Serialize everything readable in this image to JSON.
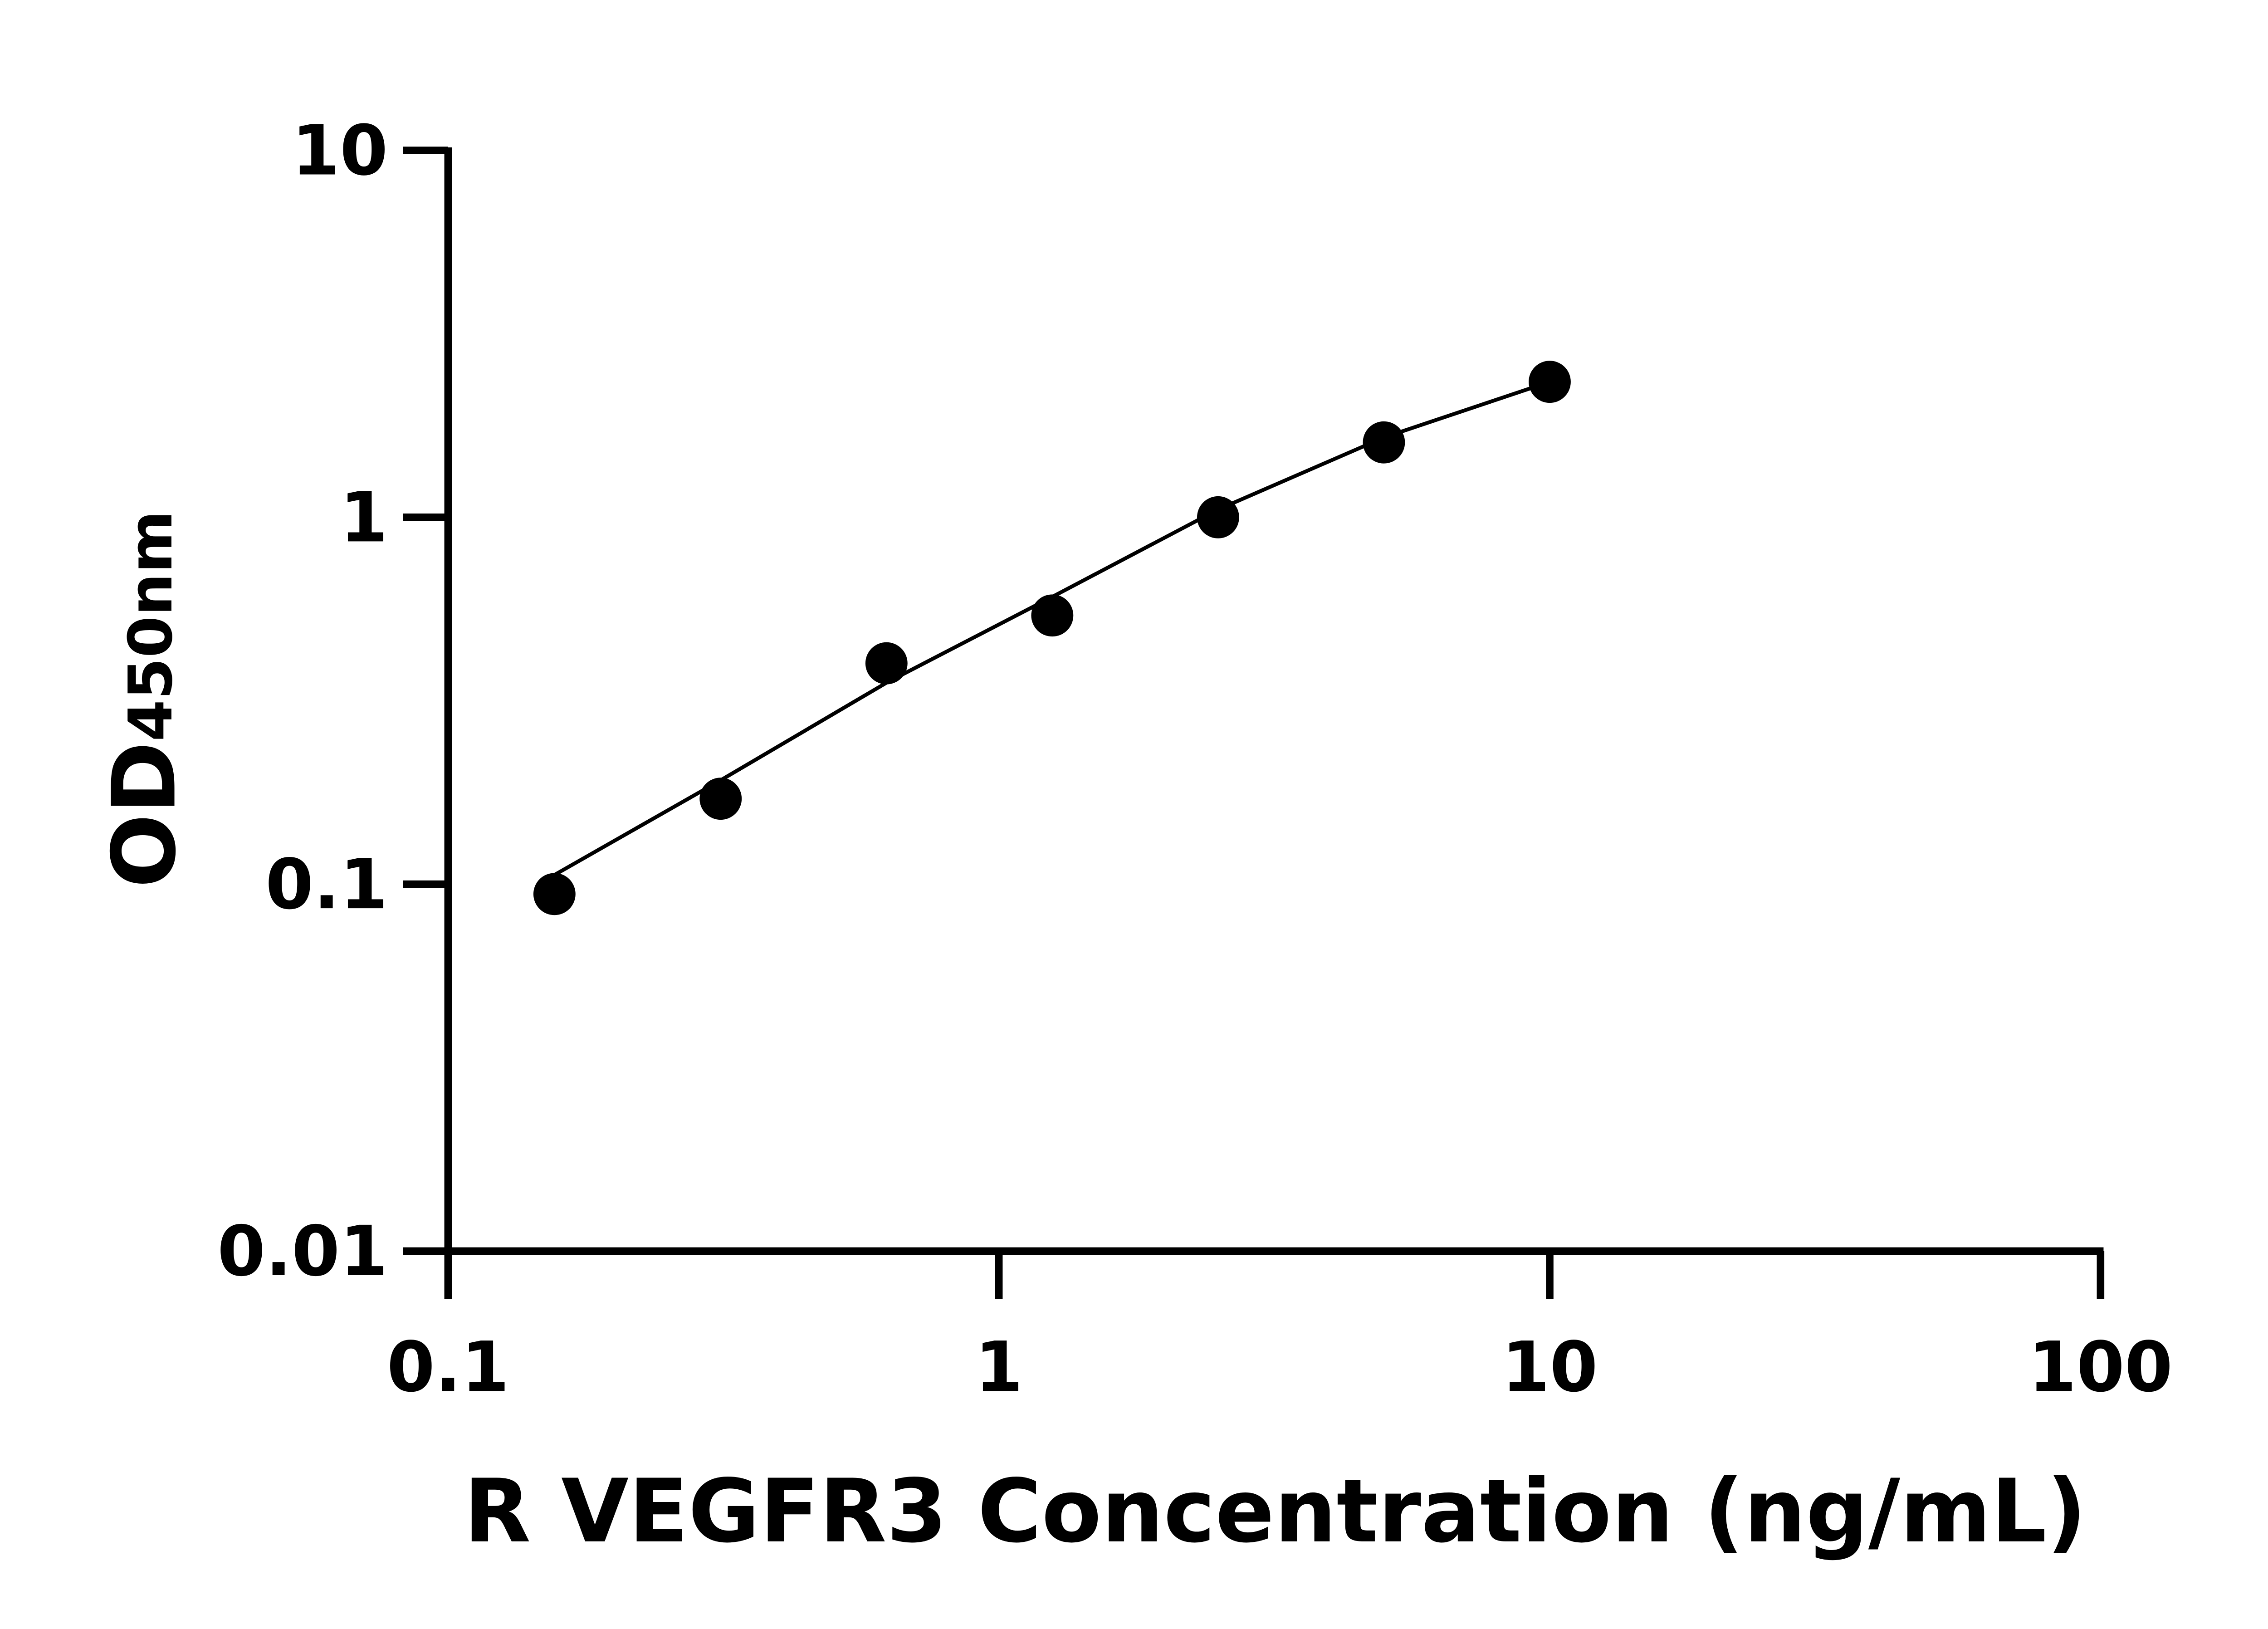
{
  "chart_data": {
    "type": "scatter",
    "x_label": "R VEGFR3 Concentration (ng/mL)",
    "y_label": "OD",
    "y_label_subscript": "450nm",
    "xscale": "log",
    "yscale": "log",
    "xlim": [
      0.1,
      100
    ],
    "ylim": [
      0.01,
      10
    ],
    "xticks": [
      0.1,
      1,
      10,
      100
    ],
    "yticks": [
      0.01,
      0.1,
      1,
      10
    ],
    "grid": false,
    "x": [
      0.156,
      0.3125,
      0.625,
      1.25,
      2.5,
      5,
      10
    ],
    "series": [
      {
        "style": "markers",
        "color": "#000000",
        "values": [
          0.094,
          0.171,
          0.4,
          0.54,
          1.0,
          1.6,
          2.34
        ]
      },
      {
        "style": "line",
        "color": "#000000",
        "values": [
          0.106,
          0.192,
          0.354,
          0.607,
          1.05,
          1.65,
          2.34
        ]
      }
    ]
  }
}
